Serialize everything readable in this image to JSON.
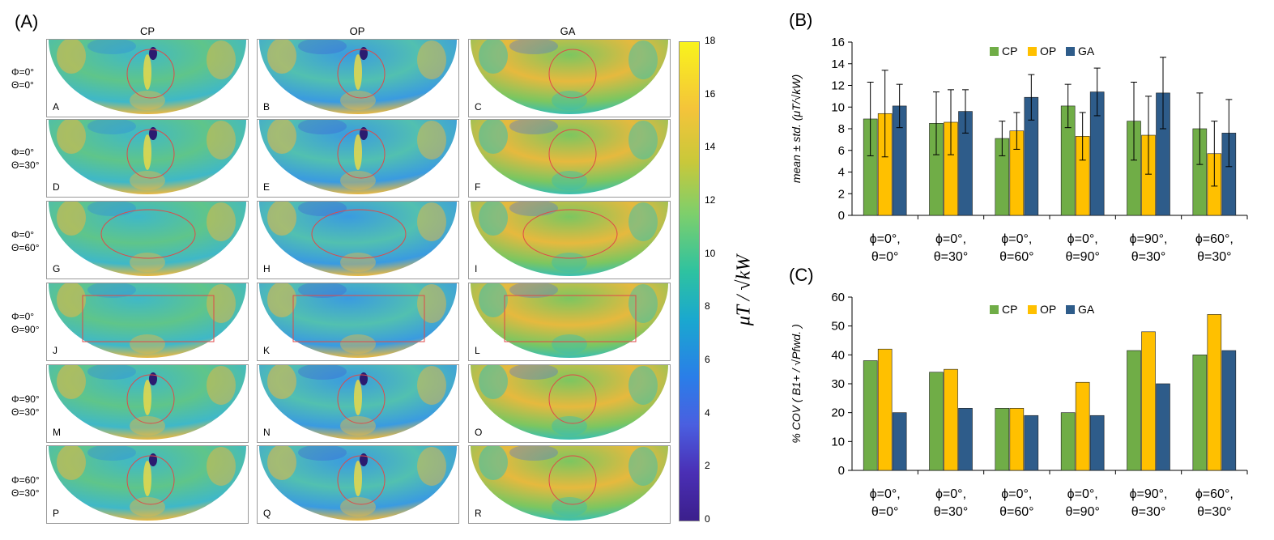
{
  "panel_a": {
    "label": "(A)",
    "col_titles": [
      "CP",
      "OP",
      "GA"
    ],
    "row_labels": [
      {
        "phi": "Φ=0°",
        "theta": "Θ=0°"
      },
      {
        "phi": "Φ=0°",
        "theta": "Θ=30°"
      },
      {
        "phi": "Φ=0°",
        "theta": "Θ=60°"
      },
      {
        "phi": "Φ=0°",
        "theta": "Θ=90°"
      },
      {
        "phi": "Φ=90°",
        "theta": "Θ=30°"
      },
      {
        "phi": "Φ=60°",
        "theta": "Θ=30°"
      }
    ],
    "tile_letters": [
      "A",
      "B",
      "C",
      "D",
      "E",
      "F",
      "G",
      "H",
      "I",
      "J",
      "K",
      "L",
      "M",
      "N",
      "O",
      "P",
      "Q",
      "R"
    ],
    "colorbar": {
      "ticks": [
        "18",
        "16",
        "14",
        "12",
        "10",
        "8",
        "6",
        "4",
        "2",
        "0"
      ],
      "unit": "μT / √kW",
      "colors": [
        "#f9f31c",
        "#f4c43a",
        "#c9c83a",
        "#7dcf6c",
        "#2ec2a0",
        "#1aa8cf",
        "#2a7ee8",
        "#4a5fe0",
        "#4a2fb5",
        "#3b1f8c"
      ]
    }
  },
  "chart_data": [
    {
      "type": "bar",
      "panel_label": "(B)",
      "title": "",
      "ylabel": "mean ± std. (μT/√kW)",
      "ylim": [
        0,
        16
      ],
      "yticks": [
        "0",
        "2",
        "4",
        "6",
        "8",
        "10",
        "12",
        "14",
        "16"
      ],
      "categories": [
        [
          "ϕ=0°,",
          "θ=0°"
        ],
        [
          "ϕ=0°,",
          "θ=30°"
        ],
        [
          "ϕ=0°,",
          "θ=60°"
        ],
        [
          "ϕ=0°,",
          "θ=90°"
        ],
        [
          "ϕ=90°,",
          "θ=30°"
        ],
        [
          "ϕ=60°,",
          "θ=30°"
        ]
      ],
      "series": [
        {
          "name": "CP",
          "color": "#70ad47",
          "values": [
            8.9,
            8.5,
            7.1,
            10.1,
            8.7,
            8.0
          ],
          "errors": [
            3.4,
            2.9,
            1.6,
            2.0,
            3.6,
            3.3
          ]
        },
        {
          "name": "OP",
          "color": "#ffc000",
          "values": [
            9.4,
            8.6,
            7.8,
            7.3,
            7.4,
            5.7
          ],
          "errors": [
            4.0,
            3.0,
            1.7,
            2.2,
            3.6,
            3.0
          ]
        },
        {
          "name": "GA",
          "color": "#2e5c8a",
          "values": [
            10.1,
            9.6,
            10.9,
            11.4,
            11.3,
            7.6
          ],
          "errors": [
            2.0,
            2.0,
            2.1,
            2.2,
            3.3,
            3.1
          ]
        }
      ],
      "legend_position": "top-center",
      "grid": false
    },
    {
      "type": "bar",
      "panel_label": "(C)",
      "title": "",
      "ylabel": "% COV ( B1+ / √Pfwd. )",
      "ylim": [
        0,
        60
      ],
      "yticks": [
        "0",
        "10",
        "20",
        "30",
        "40",
        "50",
        "60"
      ],
      "categories": [
        [
          "ϕ=0°,",
          "θ=0°"
        ],
        [
          "ϕ=0°,",
          "θ=30°"
        ],
        [
          "ϕ=0°,",
          "θ=60°"
        ],
        [
          "ϕ=0°,",
          "θ=90°"
        ],
        [
          "ϕ=90°,",
          "θ=30°"
        ],
        [
          "ϕ=60°,",
          "θ=30°"
        ]
      ],
      "series": [
        {
          "name": "CP",
          "color": "#70ad47",
          "values": [
            38,
            34,
            21.5,
            20,
            41.5,
            40
          ]
        },
        {
          "name": "OP",
          "color": "#ffc000",
          "values": [
            42,
            35,
            21.5,
            30.5,
            48,
            54
          ]
        },
        {
          "name": "GA",
          "color": "#2e5c8a",
          "values": [
            20,
            21.5,
            19,
            19,
            30,
            41.5
          ]
        }
      ],
      "legend_position": "top-center",
      "grid": false
    }
  ]
}
